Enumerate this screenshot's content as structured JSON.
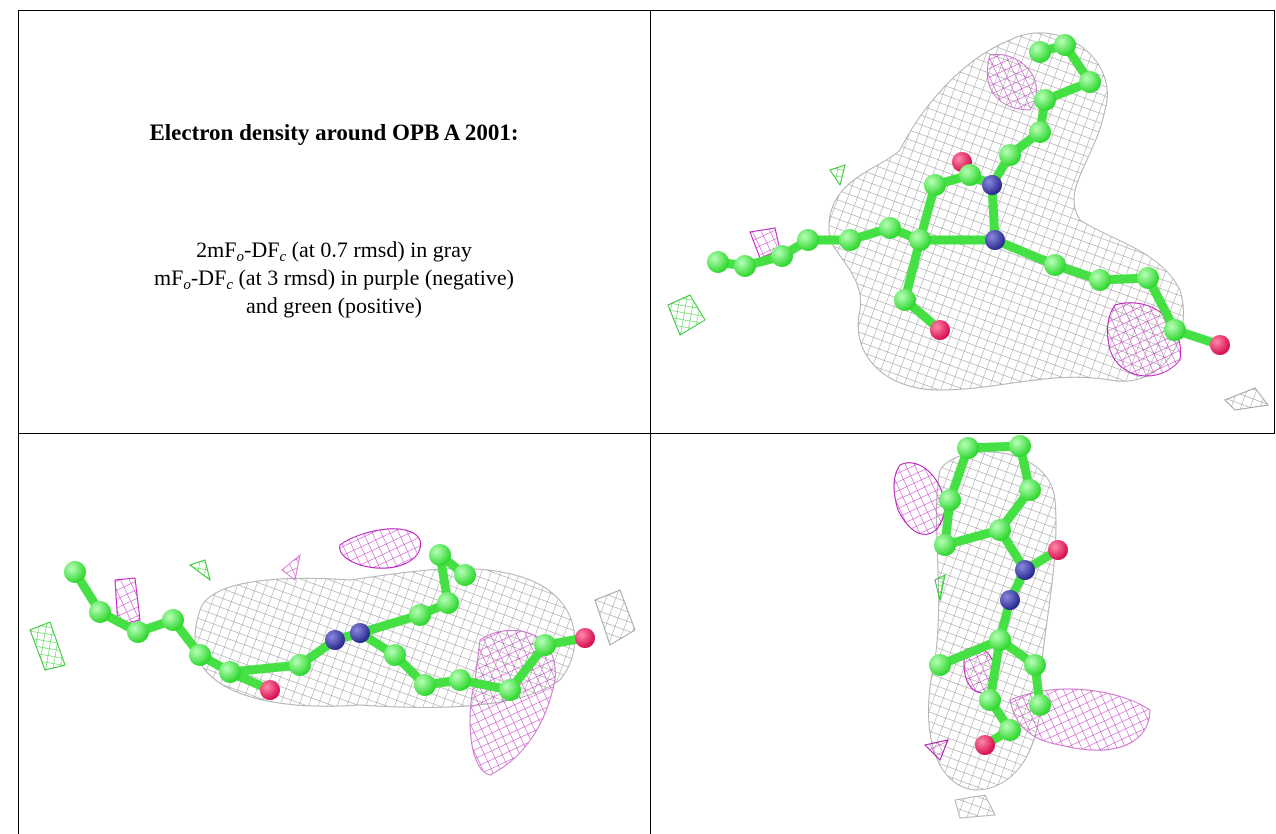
{
  "caption": {
    "title": "Electron density around OPB A 2001:",
    "lines": [
      [
        "2mF",
        "o",
        "-DF",
        "c",
        " (at 0.7 rmsd) in gray"
      ],
      [
        "mF",
        "o",
        "-DF",
        "c",
        " (at 3 rmsd) in purple (negative)"
      ],
      [
        "and green (positive)"
      ]
    ]
  }
}
